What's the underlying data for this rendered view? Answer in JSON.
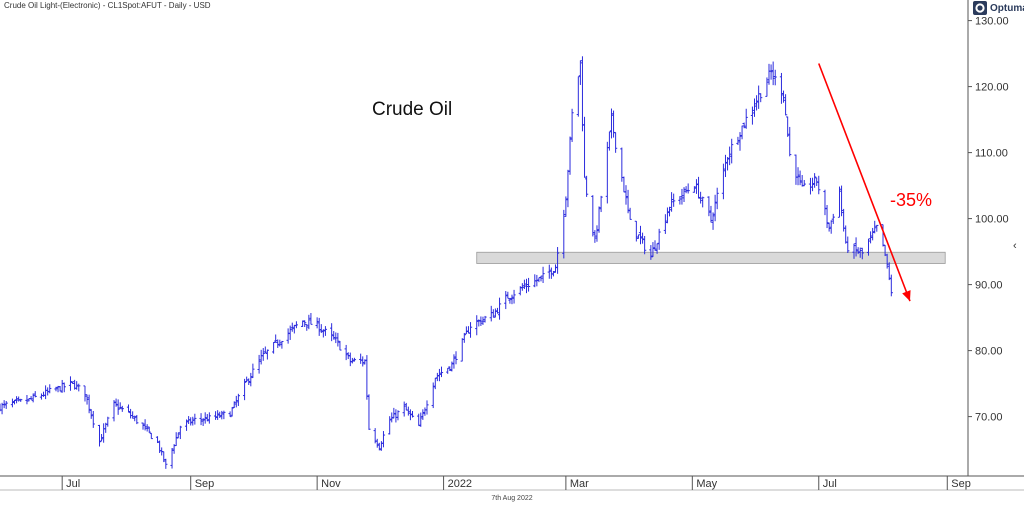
{
  "header": {
    "instrument": "Crude Oil Light-(Electronic) - CL1Spot:AFUT - Daily - USD"
  },
  "brand": {
    "name": "Optuma",
    "icon": "optuma-logo-icon"
  },
  "footer": {
    "date_label": "7th Aug 2022"
  },
  "colors": {
    "candle": "#2b2bdd",
    "trend_arrow": "#ff0000",
    "support_band": "#d9d9d9",
    "axis": "#555555"
  },
  "chart_data": {
    "type": "candlestick",
    "title": "",
    "annotation_title": "Crude Oil",
    "annotation_change": "-35%",
    "xlabel": "",
    "ylabel": "",
    "ylim": [
      61,
      131
    ],
    "x_range": [
      "2021-06-01",
      "2022-09-11"
    ],
    "y_ticks": [
      "130.00",
      "120.00",
      "110.00",
      "100.00",
      "90.00",
      "80.00",
      "70.00"
    ],
    "y_tick_values": [
      130,
      120,
      110,
      100,
      90,
      80,
      70
    ],
    "x_ticks": [
      {
        "label": "Jul",
        "date": "2021-07-01"
      },
      {
        "label": "Sep",
        "date": "2021-09-01"
      },
      {
        "label": "Nov",
        "date": "2021-11-01"
      },
      {
        "label": "2022",
        "date": "2022-01-01"
      },
      {
        "label": "Mar",
        "date": "2022-03-01"
      },
      {
        "label": "May",
        "date": "2022-05-01"
      },
      {
        "label": "Jul",
        "date": "2022-07-01"
      },
      {
        "label": "Sep",
        "date": "2022-09-01"
      }
    ],
    "support_zone": {
      "low": 93.2,
      "high": 94.9,
      "start": "2022-01-17",
      "end": "2022-08-31"
    },
    "trend_arrow": {
      "from_date": "2022-07-01",
      "from_value": 123.5,
      "to_date": "2022-08-14",
      "to_value": 87.5
    },
    "close_path": [
      [
        "2021-06-01",
        71.5
      ],
      [
        "2021-06-15",
        72.5
      ],
      [
        "2021-06-25",
        73.8
      ],
      [
        "2021-07-06",
        75.0
      ],
      [
        "2021-07-12",
        73.5
      ],
      [
        "2021-07-19",
        66.2
      ],
      [
        "2021-07-26",
        71.8
      ],
      [
        "2021-08-02",
        70.5
      ],
      [
        "2021-08-09",
        68.5
      ],
      [
        "2021-08-16",
        66.0
      ],
      [
        "2021-08-20",
        62.5
      ],
      [
        "2021-08-27",
        68.5
      ],
      [
        "2021-09-03",
        69.5
      ],
      [
        "2021-09-10",
        69.7
      ],
      [
        "2021-09-20",
        70.5
      ],
      [
        "2021-09-28",
        75.3
      ],
      [
        "2021-10-05",
        78.9
      ],
      [
        "2021-10-15",
        81.9
      ],
      [
        "2021-10-25",
        84.5
      ],
      [
        "2021-11-01",
        83.8
      ],
      [
        "2021-11-10",
        81.5
      ],
      [
        "2021-11-17",
        78.4
      ],
      [
        "2021-11-24",
        78.4
      ],
      [
        "2021-11-26",
        68.2
      ],
      [
        "2021-12-01",
        65.5
      ],
      [
        "2021-12-06",
        69.5
      ],
      [
        "2021-12-13",
        71.3
      ],
      [
        "2021-12-20",
        68.5
      ],
      [
        "2021-12-28",
        76.0
      ],
      [
        "2022-01-05",
        77.9
      ],
      [
        "2022-01-14",
        83.8
      ],
      [
        "2022-01-25",
        85.5
      ],
      [
        "2022-02-01",
        88.2
      ],
      [
        "2022-02-10",
        89.9
      ],
      [
        "2022-02-18",
        91.1
      ],
      [
        "2022-02-24",
        92.8
      ],
      [
        "2022-03-01",
        103.4
      ],
      [
        "2022-03-04",
        115.7
      ],
      [
        "2022-03-08",
        123.7
      ],
      [
        "2022-03-10",
        106.0
      ],
      [
        "2022-03-15",
        96.4
      ],
      [
        "2022-03-23",
        114.9
      ],
      [
        "2022-04-01",
        99.3
      ],
      [
        "2022-04-11",
        94.3
      ],
      [
        "2022-04-20",
        102.0
      ],
      [
        "2022-05-02",
        105.2
      ],
      [
        "2022-05-10",
        99.8
      ],
      [
        "2022-05-18",
        109.6
      ],
      [
        "2022-05-27",
        115.1
      ],
      [
        "2022-06-08",
        122.1
      ],
      [
        "2022-06-14",
        118.9
      ],
      [
        "2022-06-17",
        109.6
      ],
      [
        "2022-06-23",
        104.3
      ],
      [
        "2022-06-30",
        105.8
      ],
      [
        "2022-07-06",
        98.5
      ],
      [
        "2022-07-11",
        104.1
      ],
      [
        "2022-07-14",
        95.8
      ],
      [
        "2022-07-22",
        94.7
      ],
      [
        "2022-07-29",
        98.6
      ],
      [
        "2022-08-02",
        94.4
      ],
      [
        "2022-08-05",
        89.0
      ]
    ]
  }
}
